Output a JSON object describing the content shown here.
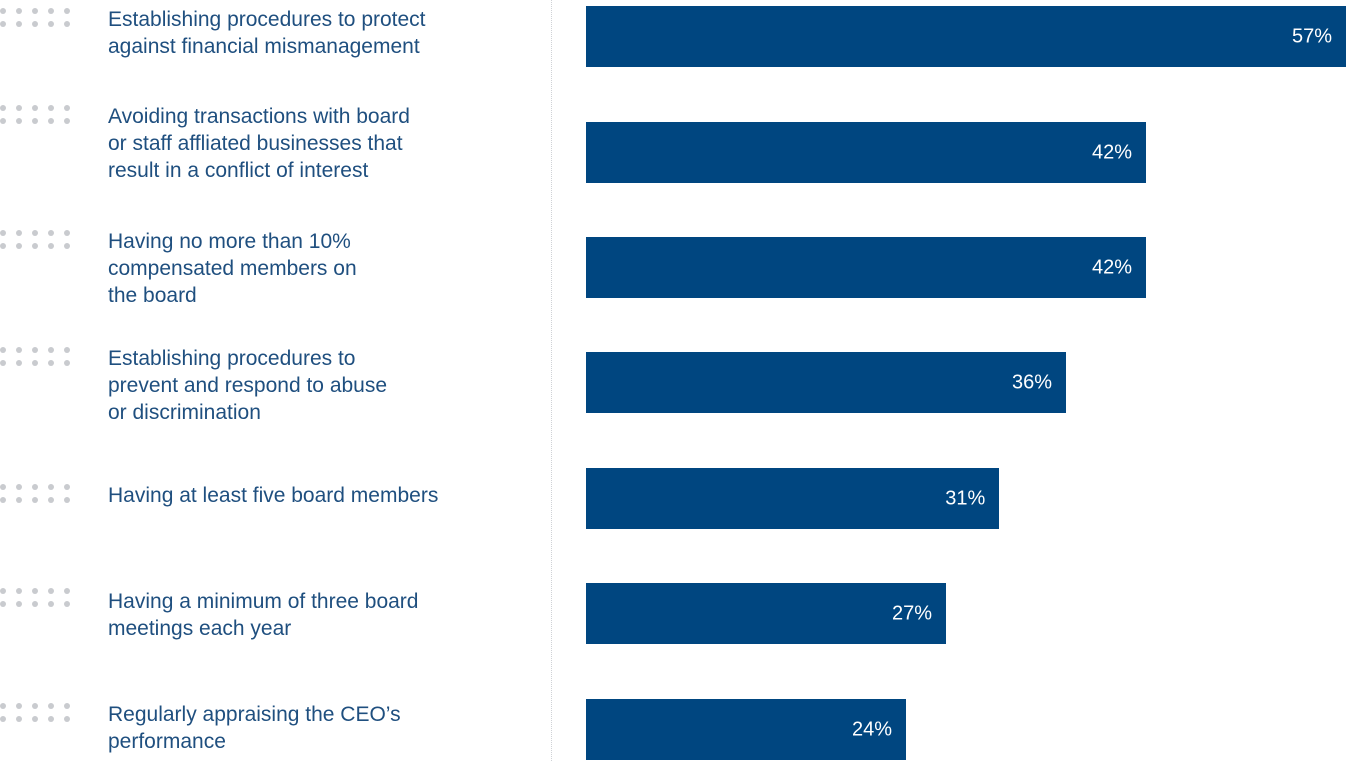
{
  "chart_data": {
    "type": "bar",
    "orientation": "horizontal",
    "categories": [
      "Establishing procedures to protect\nagainst financial mismanagement",
      "Avoiding transactions with board\nor staff affliated businesses that\nresult in a conflict of interest",
      "Having no more than 10%\ncompensated members on\nthe board",
      "Establishing procedures to\nprevent and respond to abuse\nor discrimination",
      "Having at least five board members",
      "Having a minimum of three board\nmeetings each year",
      "Regularly appraising the CEO’s\nperformance"
    ],
    "values": [
      57,
      42,
      42,
      36,
      31,
      27,
      24
    ],
    "value_labels": [
      "57%",
      "42%",
      "42%",
      "36%",
      "31%",
      "27%",
      "24%"
    ],
    "unit": "%",
    "xlim": [
      0,
      57
    ],
    "grid": false,
    "legend": "none",
    "bar_color": "#004680",
    "label_color": "#1f4f7f",
    "value_label_color": "#ffffff"
  }
}
